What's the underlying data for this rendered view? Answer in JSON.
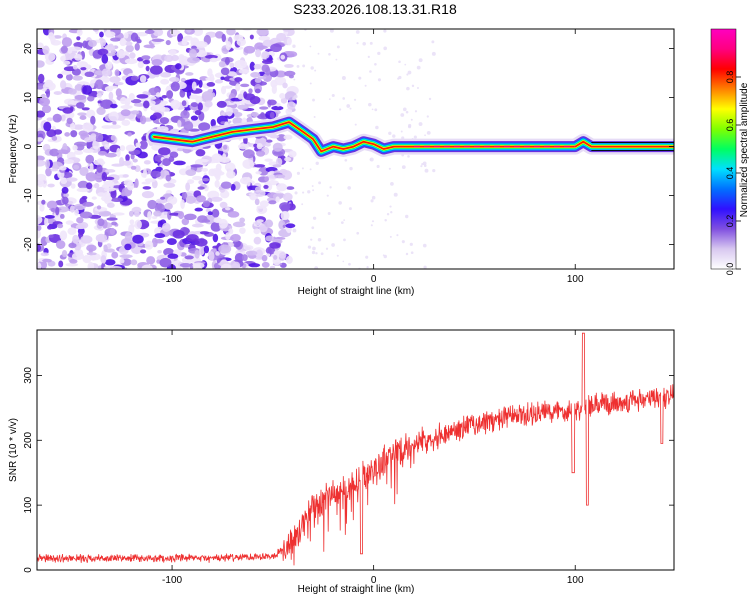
{
  "title": "S233.2026.108.13.31.R18",
  "chart_data": [
    {
      "type": "heatmap",
      "name": "spectrogram",
      "xlabel": "Height of straight line (km)",
      "ylabel": "Frequency (Hz)",
      "xlim": [
        -167,
        149
      ],
      "ylim": [
        -25,
        24
      ],
      "xticks": [
        -100,
        0,
        100
      ],
      "yticks": [
        -20,
        -10,
        0,
        10,
        20
      ],
      "colorbar": {
        "label": "Normalized spectral amplitude",
        "range": [
          0,
          1
        ],
        "ticks": [
          "0.0",
          "0.2",
          "0.4",
          "0.6",
          "0.8"
        ],
        "tick_values": [
          0.0,
          0.2,
          0.4,
          0.6,
          0.8
        ],
        "colors": [
          "#ffffff",
          "#d8c8f0",
          "#8050e0",
          "#3010ff",
          "#0070ff",
          "#00e0ff",
          "#00ff60",
          "#80ff00",
          "#ffff00",
          "#ff8000",
          "#ff0000",
          "#ff0080",
          "#ff00c0"
        ]
      },
      "noise_region_x": [
        -167,
        -40
      ],
      "tone_track": [
        {
          "x": -109,
          "y": 2
        },
        {
          "x": -100,
          "y": 1.5
        },
        {
          "x": -90,
          "y": 1
        },
        {
          "x": -80,
          "y": 2
        },
        {
          "x": -70,
          "y": 3
        },
        {
          "x": -60,
          "y": 3.5
        },
        {
          "x": -50,
          "y": 4
        },
        {
          "x": -42,
          "y": 5
        },
        {
          "x": -35,
          "y": 3
        },
        {
          "x": -30,
          "y": 1.5
        },
        {
          "x": -26,
          "y": -1
        },
        {
          "x": -20,
          "y": 0
        },
        {
          "x": -15,
          "y": -0.5
        },
        {
          "x": -10,
          "y": 0
        },
        {
          "x": -5,
          "y": 1
        },
        {
          "x": 0,
          "y": 0.5
        },
        {
          "x": 5,
          "y": -0.5
        },
        {
          "x": 10,
          "y": 0
        },
        {
          "x": 20,
          "y": 0
        },
        {
          "x": 60,
          "y": 0
        },
        {
          "x": 100,
          "y": 0
        },
        {
          "x": 104,
          "y": 1
        },
        {
          "x": 108,
          "y": 0
        },
        {
          "x": 149,
          "y": 0
        }
      ]
    },
    {
      "type": "line",
      "name": "snr",
      "xlabel": "Height of straight line (km)",
      "ylabel": "SNR (10 * v/v)",
      "xlim": [
        -167,
        149
      ],
      "ylim": [
        0,
        370
      ],
      "xticks": [
        -100,
        0,
        100
      ],
      "yticks": [
        0,
        100,
        200,
        300
      ],
      "series_color": "#ee3030",
      "trend": [
        {
          "x": -167,
          "y": 18
        },
        {
          "x": -130,
          "y": 18
        },
        {
          "x": -80,
          "y": 18
        },
        {
          "x": -50,
          "y": 22
        },
        {
          "x": -40,
          "y": 40
        },
        {
          "x": -35,
          "y": 70
        },
        {
          "x": -30,
          "y": 95
        },
        {
          "x": -20,
          "y": 115
        },
        {
          "x": -10,
          "y": 130
        },
        {
          "x": 0,
          "y": 155
        },
        {
          "x": 10,
          "y": 178
        },
        {
          "x": 20,
          "y": 195
        },
        {
          "x": 30,
          "y": 205
        },
        {
          "x": 40,
          "y": 215
        },
        {
          "x": 50,
          "y": 225
        },
        {
          "x": 60,
          "y": 230
        },
        {
          "x": 70,
          "y": 237
        },
        {
          "x": 80,
          "y": 240
        },
        {
          "x": 90,
          "y": 245
        },
        {
          "x": 100,
          "y": 248
        },
        {
          "x": 110,
          "y": 252
        },
        {
          "x": 120,
          "y": 258
        },
        {
          "x": 130,
          "y": 262
        },
        {
          "x": 140,
          "y": 265
        },
        {
          "x": 149,
          "y": 270
        }
      ],
      "features": [
        {
          "x": 104,
          "y": 365,
          "note": "peak"
        },
        {
          "x": 106,
          "y": 100,
          "note": "dip"
        },
        {
          "x": 99,
          "y": 150,
          "note": "dip"
        },
        {
          "x": -6,
          "y": 25,
          "note": "dip"
        },
        {
          "x": 143,
          "y": 195,
          "note": "dip"
        }
      ]
    }
  ]
}
